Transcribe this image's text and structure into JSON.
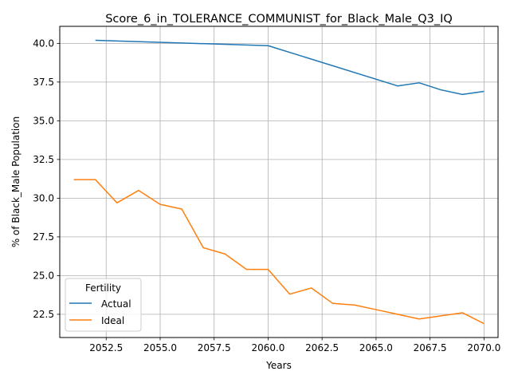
{
  "chart_data": {
    "type": "line",
    "title": "Score_6_in_TOLERANCE_COMMUNIST_for_Black_Male_Q3_IQ",
    "xlabel": "Years",
    "ylabel": "% of Black_Male Population",
    "xlim": [
      2050.35,
      2070.65
    ],
    "ylim": [
      21.0,
      41.1
    ],
    "xticks": [
      2052.5,
      2055.0,
      2057.5,
      2060.0,
      2062.5,
      2065.0,
      2067.5,
      2070.0
    ],
    "xtick_labels": [
      "2052.5",
      "2055.0",
      "2057.5",
      "2060.0",
      "2062.5",
      "2065.0",
      "2067.5",
      "2070.0"
    ],
    "yticks": [
      22.5,
      25.0,
      27.5,
      30.0,
      32.5,
      35.0,
      37.5,
      40.0
    ],
    "ytick_labels": [
      "22.5",
      "25.0",
      "27.5",
      "30.0",
      "32.5",
      "35.0",
      "37.5",
      "40.0"
    ],
    "grid": true,
    "legend": {
      "title": "Fertility",
      "placement": "lower-left"
    },
    "series": [
      {
        "name": "Actual",
        "color": "#1f77b4",
        "x": [
          2052,
          2060,
          2066,
          2067,
          2068,
          2069,
          2070
        ],
        "values": [
          40.2,
          39.85,
          37.25,
          37.45,
          37.0,
          36.7,
          36.9
        ]
      },
      {
        "name": "Ideal",
        "color": "#ff7f0e",
        "x": [
          2051,
          2052,
          2053,
          2054,
          2055,
          2056,
          2057,
          2058,
          2059,
          2060,
          2061,
          2062,
          2063,
          2064,
          2065,
          2066,
          2067,
          2068,
          2069,
          2070
        ],
        "values": [
          31.2,
          31.2,
          29.7,
          30.5,
          29.6,
          29.3,
          26.8,
          26.4,
          25.4,
          25.4,
          23.8,
          24.2,
          23.2,
          23.1,
          22.8,
          22.5,
          22.2,
          22.4,
          22.6,
          21.9
        ]
      }
    ]
  }
}
